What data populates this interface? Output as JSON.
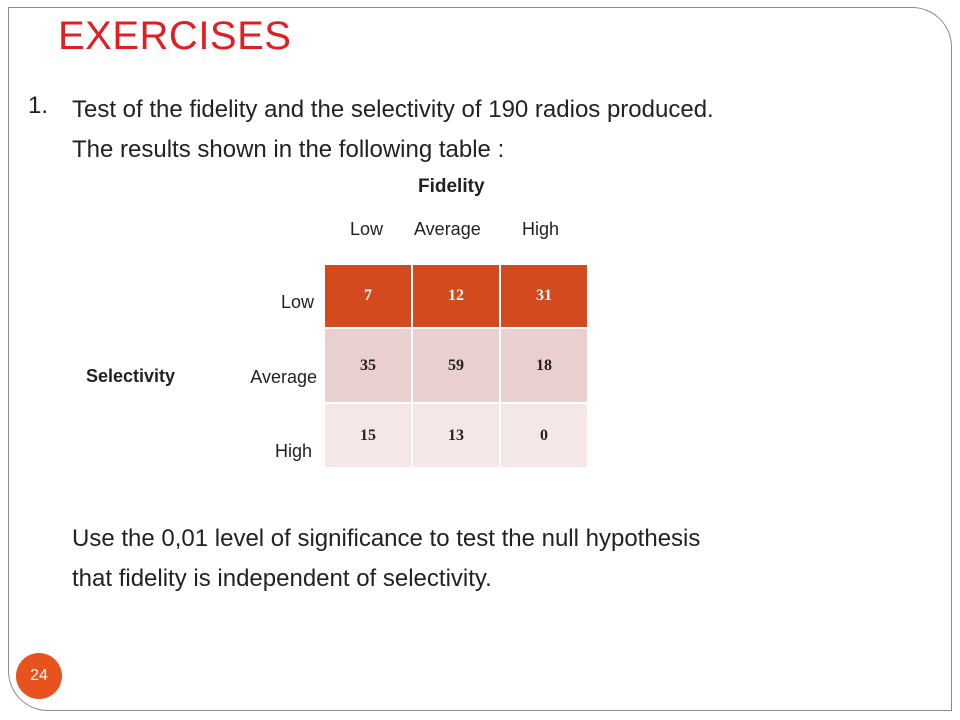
{
  "slide": {
    "title": "EXERCISES",
    "item_number": "1.",
    "paragraph1_line1": "Test of the fidelity and the selectivity of 190 radios produced.",
    "paragraph1_line2": "The results shown in the following table :",
    "paragraph2_line1": "Use the 0,01 level of significance to test the null hypothesis",
    "paragraph2_line2": "that fidelity is independent of selectivity.",
    "page_number": "24"
  },
  "table": {
    "column_group_label": "Fidelity",
    "row_group_label": "Selectivity",
    "columns": [
      "Low",
      "Average",
      "High"
    ],
    "rows": [
      "Low",
      "Average",
      "High"
    ],
    "cells": [
      [
        "7",
        "12",
        "31"
      ],
      [
        "35",
        "59",
        "18"
      ],
      [
        "15",
        "13",
        "0"
      ]
    ]
  },
  "colors": {
    "title": "#e21e23",
    "header_row": "#d24a1e",
    "row2": "#e9cfcd",
    "row3": "#f4e7e6",
    "page_badge": "#e8521f"
  }
}
